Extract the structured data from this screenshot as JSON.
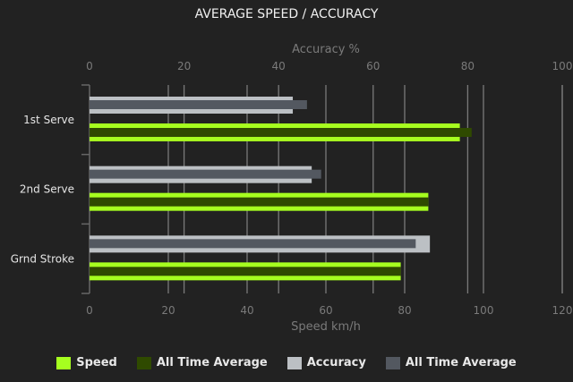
{
  "chart_data": {
    "type": "bar",
    "orientation": "horizontal",
    "title": "AVERAGE SPEED / ACCURACY",
    "categories": [
      "1st Serve",
      "2nd Serve",
      "Grnd Stroke"
    ],
    "series": [
      {
        "name": "Speed",
        "axis": "bottom",
        "color": "#a6ff1f",
        "values": [
          94,
          86,
          79
        ]
      },
      {
        "name": "All Time Average",
        "axis": "bottom",
        "color": "#2f4a00",
        "values": [
          97,
          86,
          79
        ]
      },
      {
        "name": "Accuracy",
        "axis": "top",
        "color": "#bcc0c4",
        "values": [
          43,
          47,
          72
        ]
      },
      {
        "name": "All Time Average",
        "axis": "top",
        "color": "#535860",
        "values": [
          46,
          49,
          69
        ]
      }
    ],
    "xlabel": "Speed km/h",
    "xlim": [
      0,
      120
    ],
    "xticks": [
      "0",
      "20",
      "40",
      "60",
      "80",
      "100",
      "120"
    ],
    "x2label": "Accuracy %",
    "x2lim": [
      0,
      100
    ],
    "x2ticks": [
      "0",
      "20",
      "40",
      "60",
      "80",
      "100"
    ],
    "grid": true,
    "legend": "bottom"
  }
}
